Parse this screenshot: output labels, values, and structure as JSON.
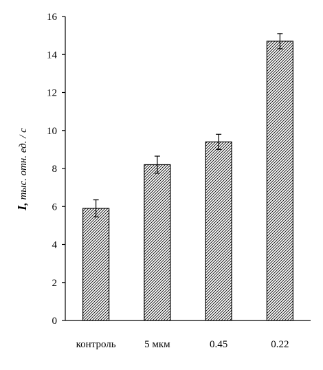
{
  "chart_data": {
    "type": "bar",
    "categories": [
      "контроль",
      "5 мкм",
      "0.45",
      "0.22"
    ],
    "values": [
      5.9,
      8.2,
      9.4,
      14.7
    ],
    "errors": [
      0.45,
      0.45,
      0.4,
      0.4
    ],
    "ylabel_main": "I,",
    "ylabel_rest": " тыс. отн. ед. / с",
    "ylim": [
      0,
      16
    ],
    "yticks": [
      0,
      2,
      4,
      6,
      8,
      10,
      12,
      14,
      16
    ],
    "grid": false,
    "legend": false,
    "bar_pattern": "diagonal-hatch",
    "colors": {
      "bar_stroke": "#000000",
      "hatch": "#000000",
      "axis": "#000000"
    }
  }
}
